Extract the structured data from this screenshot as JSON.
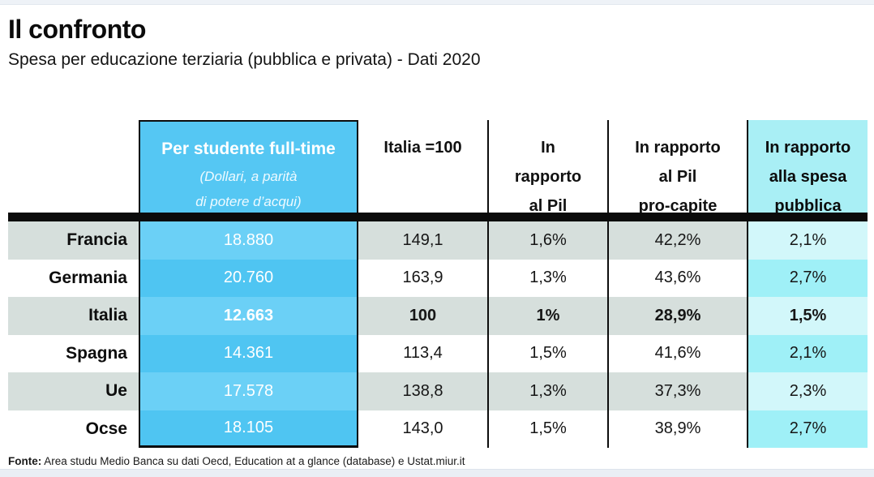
{
  "page": {
    "title": "Il confronto",
    "subtitle": "Spesa per educazione terziaria (pubblica e privata) - Dati 2020",
    "footer": {
      "label": "Fonte:",
      "text": " Area studu Medio Banca su dati Oecd, Education at a glance (database) e Ustat.miur.it"
    }
  },
  "colors": {
    "column_blue": "#55c7f3",
    "column_blue_light": "#6bd0f6",
    "header_cyan": "#a9eff5",
    "cyan_row_light": "#d2f7fa",
    "cyan_row_strong": "#9ff0f7",
    "stripe_gray": "#d6dfdc",
    "rule_black": "#0b0b0b"
  },
  "table": {
    "header": {
      "col1": {
        "title": "Per studente full-time",
        "sub1": "(Dollari, a parità",
        "sub2": "di potere d’acqui)"
      },
      "col2": "Italia =100",
      "col3": {
        "l1": "In",
        "l2": "rapporto",
        "l3": "al Pil"
      },
      "col4": {
        "l1": "In rapporto",
        "l2": "al Pil",
        "l3": "pro-capite"
      },
      "col5": {
        "l1": "In rapporto",
        "l2": "alla spesa",
        "l3": "pubblica"
      }
    },
    "rows": [
      {
        "label": "Francia",
        "spend": "18.880",
        "index": "149,1",
        "pil": "1,6%",
        "pil_procapite": "42,2%",
        "spesa_pubblica": "2,1%"
      },
      {
        "label": "Germania",
        "spend": "20.760",
        "index": "163,9",
        "pil": "1,3%",
        "pil_procapite": "43,6%",
        "spesa_pubblica": "2,7%"
      },
      {
        "label": "Italia",
        "spend": "12.663",
        "index": "100",
        "pil": "1%",
        "pil_procapite": "28,9%",
        "spesa_pubblica": "1,5%"
      },
      {
        "label": "Spagna",
        "spend": "14.361",
        "index": "113,4",
        "pil": "1,5%",
        "pil_procapite": "41,6%",
        "spesa_pubblica": "2,1%"
      },
      {
        "label": "Ue",
        "spend": "17.578",
        "index": "138,8",
        "pil": "1,3%",
        "pil_procapite": "37,3%",
        "spesa_pubblica": "2,3%"
      },
      {
        "label": "Ocse",
        "spend": "18.105",
        "index": "143,0",
        "pil": "1,5%",
        "pil_procapite": "38,9%",
        "spesa_pubblica": "2,7%"
      }
    ]
  },
  "chart_data": {
    "type": "table",
    "title": "Il confronto",
    "subtitle": "Spesa per educazione terziaria (pubblica e privata) - Dati 2020",
    "columns": [
      "",
      "Per studente full-time (Dollari, a parità di potere d’acqui)",
      "Italia =100",
      "In rapporto al Pil",
      "In rapporto al Pil pro-capite",
      "In rapporto alla spesa pubblica"
    ],
    "rows": [
      [
        "Francia",
        18880,
        149.1,
        "1,6%",
        "42,2%",
        "2,1%"
      ],
      [
        "Germania",
        20760,
        163.9,
        "1,3%",
        "43,6%",
        "2,7%"
      ],
      [
        "Italia",
        12663,
        100,
        "1%",
        "28,9%",
        "1,5%"
      ],
      [
        "Spagna",
        14361,
        113.4,
        "1,5%",
        "41,6%",
        "2,1%"
      ],
      [
        "Ue",
        17578,
        138.8,
        "1,3%",
        "37,3%",
        "2,3%"
      ],
      [
        "Ocse",
        18105,
        143.0,
        "1,5%",
        "38,9%",
        "2,7%"
      ]
    ],
    "source": "Fonte: Area studu Medio Banca su dati Oecd, Education at a glance (database) e Ustat.miur.it",
    "highlighted_row": "Italia"
  }
}
